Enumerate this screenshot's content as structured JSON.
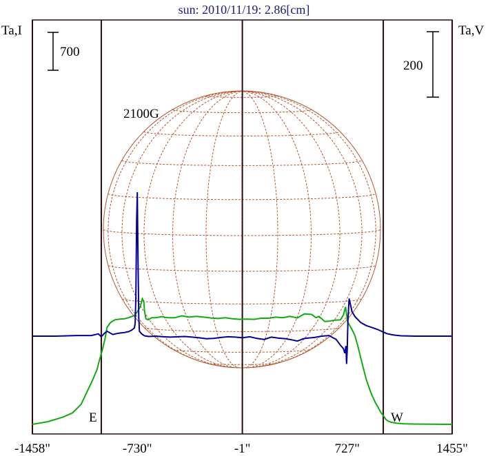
{
  "chart_data": {
    "type": "line",
    "title": "sun: 2010/11/19: 2.86[cm]",
    "ylabel_left": "Ta,I",
    "ylabel_right": "Ta,V",
    "scale_bar_left_label": "700",
    "scale_bar_right_label": "200",
    "annotation": "2100G",
    "limb_label_east": "E",
    "limb_label_west": "W",
    "x_ticks": [
      {
        "value": -1458,
        "label": "-1458\""
      },
      {
        "value": -730,
        "label": "-730\""
      },
      {
        "value": -1,
        "label": "-1\""
      },
      {
        "value": 727,
        "label": "727\""
      },
      {
        "value": 1455,
        "label": "1455\""
      }
    ],
    "xlim": [
      -1458,
      1455
    ],
    "vertical_lines_arcsec": [
      -1458,
      -980,
      -1,
      977,
      1455
    ],
    "colors": {
      "intensity": "#11aa11",
      "polarization": "#000099",
      "sun_disk": "#b5552e",
      "title": "#1a1a7a",
      "frame": "#2a0a0a"
    },
    "series": [
      {
        "name": "Ta,I",
        "unit_scale": "left",
        "x": [
          -1458,
          -1350,
          -1250,
          -1180,
          -1120,
          -1070,
          -1040,
          -1010,
          -990,
          -980,
          -970,
          -955,
          -940,
          -920,
          -900,
          -880,
          -850,
          -820,
          -790,
          -770,
          -750,
          -730,
          -710,
          -695,
          -685,
          -680,
          -670,
          -655,
          -630,
          -600,
          -560,
          -520,
          -470,
          -420,
          -370,
          -320,
          -270,
          -220,
          -170,
          -120,
          -70,
          -20,
          30,
          80,
          130,
          180,
          230,
          280,
          330,
          380,
          430,
          480,
          510,
          530,
          550,
          570,
          600,
          640,
          680,
          700,
          715,
          730,
          745,
          760,
          780,
          800,
          830,
          860,
          890,
          920,
          940,
          960,
          980,
          995,
          1010,
          1030,
          1070,
          1120,
          1200,
          1300,
          1400,
          1455
        ],
        "values": [
          -170,
          -120,
          -40,
          40,
          200,
          480,
          650,
          840,
          1040,
          1130,
          1230,
          1400,
          1620,
          1700,
          1740,
          1765,
          1775,
          1780,
          1800,
          1820,
          1840,
          1910,
          2000,
          2150,
          2100,
          1920,
          1780,
          1760,
          1800,
          1800,
          1820,
          1800,
          1800,
          1835,
          1810,
          1825,
          1810,
          1795,
          1785,
          1800,
          1780,
          1770,
          1775,
          1770,
          1790,
          1790,
          1810,
          1800,
          1825,
          1795,
          1870,
          1860,
          1800,
          1825,
          1780,
          1730,
          1735,
          1755,
          1760,
          1850,
          2000,
          1720,
          1650,
          1580,
          1470,
          1280,
          960,
          650,
          420,
          240,
          150,
          50,
          -20,
          -80,
          -110,
          -130,
          -150,
          -160,
          -165,
          -168,
          -170,
          -170
        ]
      },
      {
        "name": "Ta,V",
        "unit_scale": "right",
        "x": [
          -1458,
          -1300,
          -1150,
          -1050,
          -1000,
          -980,
          -960,
          -940,
          -900,
          -860,
          -820,
          -790,
          -770,
          -750,
          -745,
          -740,
          -735,
          -730,
          -725,
          -720,
          -715,
          -700,
          -680,
          -650,
          -600,
          -550,
          -500,
          -450,
          -400,
          -350,
          -300,
          -250,
          -200,
          -150,
          -100,
          -50,
          0,
          50,
          100,
          150,
          200,
          250,
          300,
          350,
          380,
          400,
          420,
          450,
          500,
          550,
          600,
          650,
          680,
          700,
          710,
          718,
          722,
          727,
          732,
          740,
          750,
          760,
          780,
          820,
          860,
          900,
          940,
          980,
          1000,
          1030,
          1060,
          1100,
          1200,
          1300,
          1455
        ],
        "values": [
          0,
          0,
          2,
          2,
          7,
          -2,
          8,
          15,
          5,
          9,
          11,
          14,
          18,
          25,
          40,
          120,
          350,
          440,
          240,
          60,
          15,
          7,
          1,
          -1,
          0,
          -2,
          -3,
          -2,
          -1,
          -3,
          -5,
          -8,
          -7,
          -4,
          -2,
          -3,
          -5,
          -2,
          -7,
          -10,
          -3,
          -6,
          -8,
          -12,
          -15,
          -12,
          -8,
          -6,
          -4,
          0,
          2,
          -10,
          -28,
          -38,
          -52,
          -30,
          -85,
          -40,
          50,
          115,
          95,
          75,
          60,
          42,
          32,
          26,
          20,
          12,
          8,
          5,
          3,
          1,
          0,
          0,
          0
        ]
      }
    ]
  }
}
